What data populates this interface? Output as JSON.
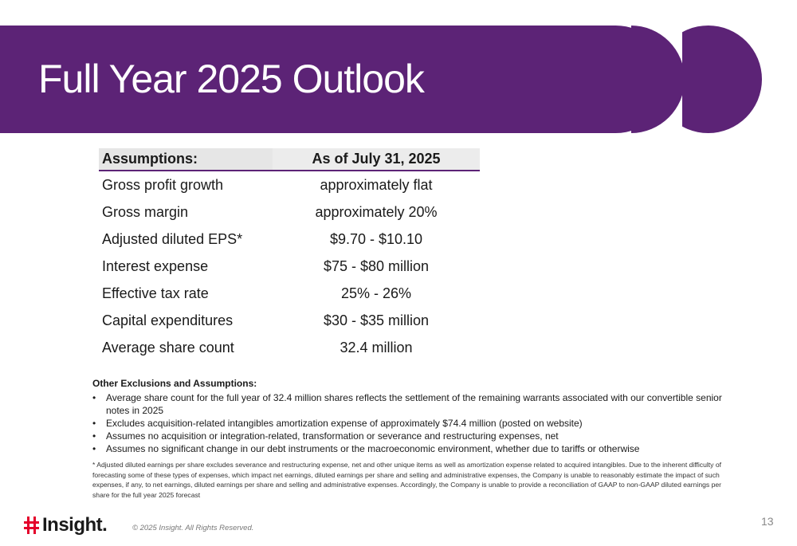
{
  "slide": {
    "title": "Full Year 2025 Outlook",
    "page_number": "13",
    "accent_color": "#5c2376"
  },
  "table": {
    "header": [
      "Assumptions:",
      "As of July 31, 2025"
    ],
    "rows": [
      {
        "label": "Gross profit growth",
        "value": "approximately flat"
      },
      {
        "label": "Gross margin",
        "value": "approximately 20%"
      },
      {
        "label": "Adjusted diluted EPS*",
        "value": "$9.70 - $10.10"
      },
      {
        "label": "Interest expense",
        "value": "$75 - $80 million"
      },
      {
        "label": "Effective tax rate",
        "value": "25% - 26%"
      },
      {
        "label": "Capital expenditures",
        "value": "$30 - $35 million"
      },
      {
        "label": "Average share count",
        "value": "32.4 million"
      }
    ]
  },
  "other": {
    "title": "Other Exclusions and Assumptions:",
    "bullets": [
      "Average share count for the full year of 32.4 million shares reflects the settlement of the remaining warrants associated with our convertible senior notes in 2025",
      "Excludes acquisition-related intangibles amortization expense of approximately $74.4 million (posted on website)",
      "Assumes no acquisition or integration-related, transformation or severance and restructuring expenses, net",
      "Assumes no significant change in our debt instruments or the macroeconomic environment, whether due to tariffs or otherwise"
    ]
  },
  "footnote": "* Adjusted diluted earnings per share excludes severance and restructuring expense, net and other unique items as well as amortization expense related to acquired intangibles. Due to the inherent difficulty of forecasting some of these types of expenses, which impact net earnings, diluted earnings per share and selling and administrative expenses, the Company is unable to reasonably estimate the impact of such expenses, if any, to net earnings, diluted earnings per share and selling and administrative expenses. Accordingly, the Company is unable to provide a reconciliation of GAAP to non-GAAP diluted earnings per share for the full year 2025 forecast",
  "footer": {
    "logo_text": "Insight.",
    "logo_icon": "insight-logo-icon",
    "copyright": "© 2025 Insight. All Rights Reserved."
  }
}
